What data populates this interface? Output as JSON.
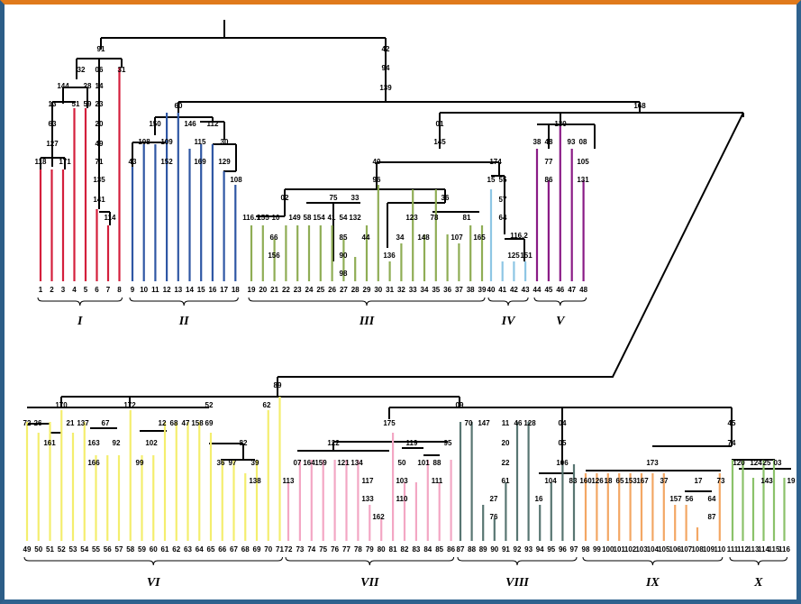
{
  "colors": {
    "I": "#d41f3c",
    "II": "#2f57a4",
    "III": "#8fad55",
    "IV": "#8ec6e4",
    "V": "#8a1b86",
    "VI": "#f4ee6e",
    "VII": "#f3a7c4",
    "VIII": "#587672",
    "IX": "#f3a764",
    "X": "#8bc26a"
  },
  "groups": [
    {
      "roman": "I",
      "leaves": [
        "1",
        "2",
        "3",
        "4",
        "5",
        "6",
        "7",
        "8"
      ]
    },
    {
      "roman": "II",
      "leaves": [
        "9",
        "10",
        "11",
        "12",
        "13",
        "14",
        "15",
        "16",
        "17",
        "18"
      ]
    },
    {
      "roman": "III",
      "leaves": [
        "19",
        "20",
        "21",
        "22",
        "23",
        "24",
        "25",
        "26",
        "27",
        "28",
        "29",
        "30",
        "31",
        "32",
        "33",
        "34",
        "35",
        "36",
        "37",
        "38",
        "39"
      ]
    },
    {
      "roman": "IV",
      "leaves": [
        "40",
        "41",
        "42",
        "43"
      ]
    },
    {
      "roman": "V",
      "leaves": [
        "44",
        "45",
        "46",
        "47",
        "48"
      ]
    },
    {
      "roman": "VI",
      "leaves": [
        "49",
        "50",
        "51",
        "52",
        "53",
        "54",
        "55",
        "56",
        "57",
        "58",
        "59",
        "60",
        "61",
        "62",
        "63",
        "64",
        "65",
        "66",
        "67",
        "68",
        "69",
        "70",
        "71"
      ]
    },
    {
      "roman": "VII",
      "leaves": [
        "72",
        "73",
        "74",
        "75",
        "76",
        "77",
        "78",
        "79",
        "80",
        "81",
        "82",
        "83",
        "84",
        "85",
        "86"
      ]
    },
    {
      "roman": "VIII",
      "leaves": [
        "87",
        "88",
        "89",
        "90",
        "91",
        "92",
        "93",
        "94",
        "95",
        "96",
        "97"
      ]
    },
    {
      "roman": "IX",
      "leaves": [
        "98",
        "99",
        "100",
        "101",
        "102",
        "103",
        "104",
        "105",
        "106",
        "107",
        "108",
        "109",
        "110"
      ]
    },
    {
      "roman": "X",
      "leaves": [
        "111",
        "112",
        "113",
        "114",
        "115",
        "116"
      ]
    }
  ],
  "node_labels": [
    "91",
    "42",
    "94",
    "139",
    "32",
    "06",
    "31",
    "144",
    "28",
    "14",
    "13",
    "51",
    "59",
    "23",
    "63",
    "20",
    "127",
    "49",
    "118",
    "171",
    "71",
    "135",
    "141",
    "114",
    "60",
    "168",
    "150",
    "146",
    "112",
    "108",
    "109",
    "115",
    "30",
    "43",
    "152",
    "169",
    "129",
    "108",
    "01",
    "145",
    "40",
    "96",
    "02",
    "75",
    "33",
    "36",
    "116.1",
    "155",
    "10",
    "149",
    "58",
    "154",
    "41",
    "54",
    "132",
    "123",
    "78",
    "81",
    "66",
    "156",
    "85",
    "44",
    "34",
    "148",
    "107",
    "165",
    "90",
    "136",
    "98",
    "174",
    "15",
    "55",
    "57",
    "64",
    "116.2",
    "125",
    "151",
    "130",
    "38",
    "48",
    "93",
    "08",
    "77",
    "86",
    "105",
    "131",
    "89",
    "170",
    "172",
    "52",
    "62",
    "09",
    "72",
    "26",
    "21",
    "137",
    "67",
    "12",
    "68",
    "47",
    "158",
    "69",
    "161",
    "163",
    "92",
    "102",
    "166",
    "99",
    "82",
    "36",
    "97",
    "39",
    "138",
    "175",
    "122",
    "07",
    "164",
    "159",
    "121",
    "134",
    "119",
    "95",
    "113",
    "117",
    "133",
    "162",
    "50",
    "103",
    "110",
    "101",
    "88",
    "111",
    "70",
    "147",
    "11",
    "46",
    "128",
    "04",
    "20",
    "05",
    "22",
    "106",
    "61",
    "104",
    "83",
    "27",
    "16",
    "76",
    "45",
    "173",
    "74",
    "160",
    "126",
    "18",
    "65",
    "153",
    "167",
    "37",
    "17",
    "157",
    "56",
    "64",
    "87",
    "73",
    "120",
    "124",
    "25",
    "03",
    "143",
    "19"
  ]
}
